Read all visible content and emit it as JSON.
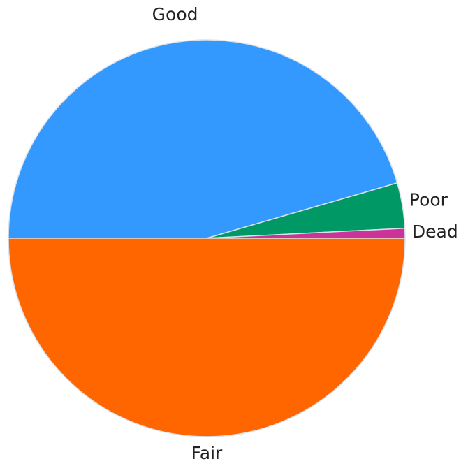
{
  "chart_data": {
    "type": "pie",
    "title": "",
    "slices": [
      {
        "label": "Good",
        "value": 45.5,
        "color": "#3399ff"
      },
      {
        "label": "Poor",
        "value": 3.7,
        "color": "#009966"
      },
      {
        "label": "Dead",
        "value": 0.8,
        "color": "#cc3399"
      },
      {
        "label": "Fair",
        "value": 50.0,
        "color": "#ff6600"
      }
    ],
    "legend": "none",
    "labels_position": "outside"
  }
}
